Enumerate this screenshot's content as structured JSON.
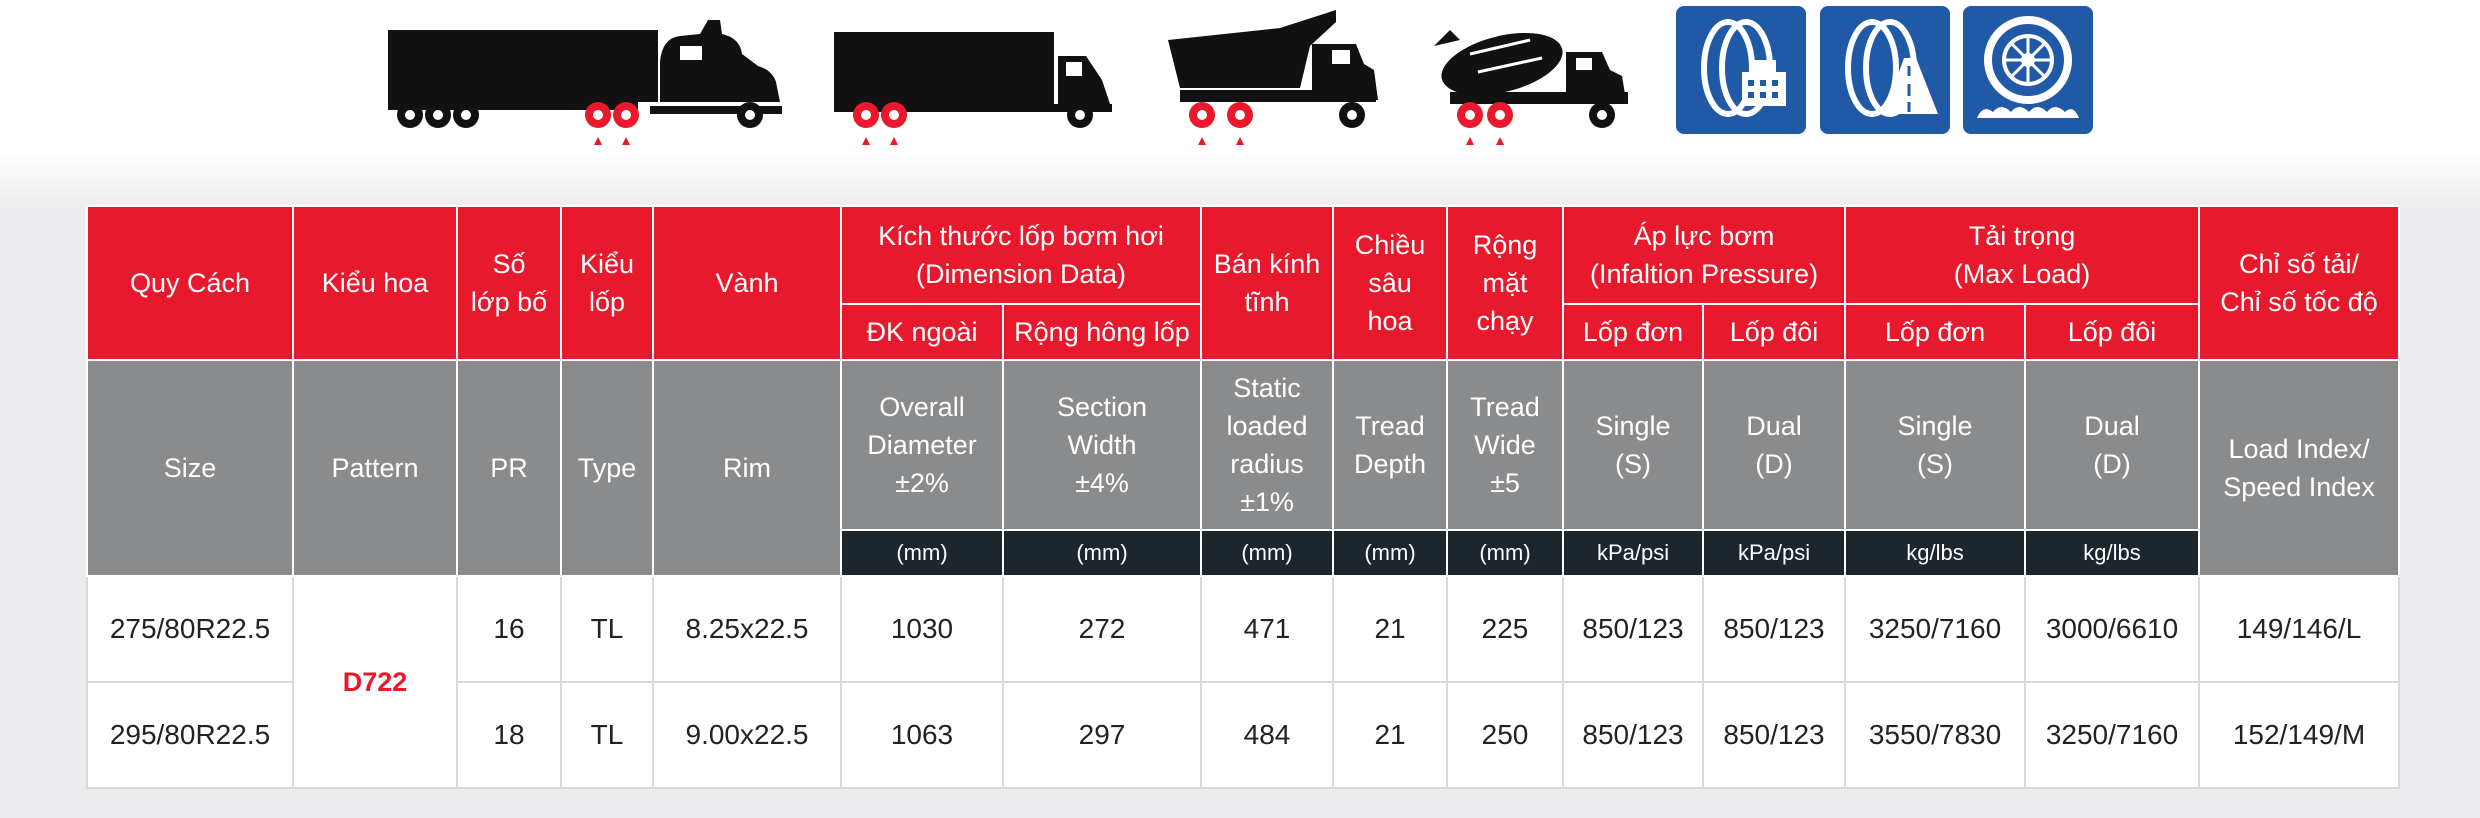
{
  "vehicle_icons": [
    {
      "name": "semi-truck-trailer-icon"
    },
    {
      "name": "box-truck-icon"
    },
    {
      "name": "dump-truck-icon"
    },
    {
      "name": "concrete-mixer-truck-icon"
    }
  ],
  "badges": [
    {
      "name": "tire-city-icon"
    },
    {
      "name": "tire-highway-icon"
    },
    {
      "name": "tire-offroad-icon"
    }
  ],
  "colors": {
    "header_red": "#e8192c",
    "header_gray": "#8a8b8d",
    "unit_dark": "#1d262c",
    "badge_blue": "#2059a6"
  },
  "table": {
    "vi": {
      "size": [
        "Quy Cách"
      ],
      "pattern": [
        "Kiểu hoa"
      ],
      "pr": [
        "Số",
        "lớp bố"
      ],
      "type": [
        "Kiểu",
        "lốp"
      ],
      "rim": [
        "Vành"
      ],
      "dimension": [
        "Kích thước lốp bơm hơi",
        "(Dimension Data)"
      ],
      "od": "ĐK ngoài",
      "sw": "Rộng hông lốp",
      "radius": [
        "Bán kính",
        "tĩnh"
      ],
      "depth": [
        "Chiều",
        "sâu",
        "hoa"
      ],
      "wide": [
        "Rộng",
        "mặt",
        "chạy"
      ],
      "pressure": [
        "Áp lực bơm",
        "(Infaltion Pressure)"
      ],
      "pressure_single": "Lốp đơn",
      "pressure_dual": "Lốp đôi",
      "load": [
        "Tải trọng",
        "(Max Load)"
      ],
      "load_single": "Lốp đơn",
      "load_dual": "Lốp đôi",
      "index": [
        "Chỉ số tải/",
        "Chỉ số tốc độ"
      ]
    },
    "en": {
      "size": [
        "Size"
      ],
      "pattern": [
        "Pattern"
      ],
      "pr": [
        "PR"
      ],
      "type": [
        "Type"
      ],
      "rim": [
        "Rim"
      ],
      "od": [
        "Overall",
        "Diameter",
        "±2%"
      ],
      "sw": [
        "Section",
        "Width",
        "±4%"
      ],
      "radius": [
        "Static",
        "loaded",
        "radius",
        "±1%"
      ],
      "depth": [
        "Tread",
        "Depth"
      ],
      "wide": [
        "Tread",
        "Wide",
        "±5"
      ],
      "pressure_single": [
        "Single",
        "(S)"
      ],
      "pressure_dual": [
        "Dual",
        "(D)"
      ],
      "load_single": [
        "Single",
        "(S)"
      ],
      "load_dual": [
        "Dual",
        "(D)"
      ],
      "index": [
        "Load Index/",
        "Speed Index"
      ]
    },
    "units": {
      "od": "(mm)",
      "sw": "(mm)",
      "radius": "(mm)",
      "depth": "(mm)",
      "wide": "(mm)",
      "pressure_single": "kPa/psi",
      "pressure_dual": "kPa/psi",
      "load_single": "kg/lbs",
      "load_dual": "kg/lbs"
    },
    "pattern_name": "D722",
    "rows": [
      {
        "size": "275/80R22.5",
        "pr": "16",
        "type": "TL",
        "rim": "8.25x22.5",
        "od": "1030",
        "sw": "272",
        "radius": "471",
        "depth": "21",
        "wide": "225",
        "ps": "850/123",
        "pd": "850/123",
        "ls": "3250/7160",
        "ld": "3000/6610",
        "index": "149/146/L"
      },
      {
        "size": "295/80R22.5",
        "pr": "18",
        "type": "TL",
        "rim": "9.00x22.5",
        "od": "1063",
        "sw": "297",
        "radius": "484",
        "depth": "21",
        "wide": "250",
        "ps": "850/123",
        "pd": "850/123",
        "ls": "3550/7830",
        "ld": "3250/7160",
        "index": "152/149/M"
      }
    ]
  }
}
